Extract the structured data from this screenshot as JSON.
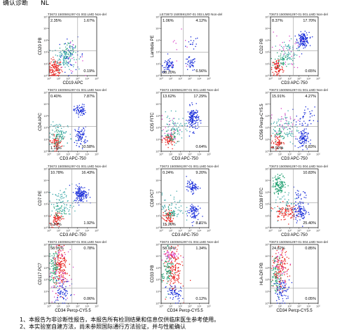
{
  "header": {
    "title": "确认诊断",
    "mark": "NL"
  },
  "notes": [
    "1、本报告为非诊断性报告，本报告所有检测结果和信息仅供临床医生参考使用。",
    "2、本实验室自建方法，尚未参照国际通行方法验证，并与性能确认"
  ],
  "colors": {
    "red": "#e8201c",
    "blue": "#1428d8",
    "green": "#20a070",
    "teal": "#3aa7a8",
    "magenta": "#d840c8",
    "gate": "#9a9a9a"
  },
  "chart_data": [
    {
      "type": "scatter",
      "title": "T3673 1500591297-01 002.LMD    Non-del",
      "xlabel": "CD19 APC",
      "ylabel": "CD20 PB",
      "ticks": [
        "10⁰",
        "10¹",
        "10²",
        "10³",
        "10⁴",
        "10⁵"
      ],
      "xlim": [
        0,
        5
      ],
      "ylim": [
        0,
        5
      ],
      "gate": [
        3.0,
        2.1
      ],
      "quadrants": {
        "ul": "2.35%",
        "ur": "1.67%",
        "lr": "0.19%"
      },
      "populations": [
        {
          "color": "red",
          "x": 0.6,
          "y": 0.6,
          "sx": 0.35,
          "sy": 0.4,
          "n": 120
        },
        {
          "color": "teal",
          "x": 1.6,
          "y": 1.6,
          "sx": 0.55,
          "sy": 0.5,
          "n": 120
        },
        {
          "color": "green",
          "x": 2.1,
          "y": 2.3,
          "sx": 0.35,
          "sy": 0.3,
          "n": 30
        },
        {
          "color": "blue",
          "x": 2.3,
          "y": 1.8,
          "sx": 0.7,
          "sy": 0.7,
          "n": 35
        },
        {
          "color": "magenta",
          "x": 2.0,
          "y": 1.5,
          "sx": 0.8,
          "sy": 0.6,
          "n": 12
        }
      ]
    },
    {
      "type": "scatter",
      "title": "LE73673 1500591297-01 002.LMD    Non-del",
      "xlabel": "",
      "ylabel": "Lambda PE",
      "ticks": [
        "10⁰",
        "10¹",
        "10²",
        "10³",
        "10⁴",
        "10⁵"
      ],
      "xlim": [
        0,
        5
      ],
      "ylim": [
        0,
        5
      ],
      "gate": [
        2.3,
        2.0
      ],
      "quadrants": {
        "ul": "1.06%",
        "ur": "4.12%",
        "ll": "88.20%",
        "lr": "6.56%"
      },
      "populations": [
        {
          "color": "blue",
          "x": 0.8,
          "y": 0.9,
          "sx": 0.35,
          "sy": 0.3,
          "n": 60
        },
        {
          "color": "blue",
          "x": 3.0,
          "y": 1.0,
          "sx": 0.3,
          "sy": 0.3,
          "n": 40
        },
        {
          "color": "blue",
          "x": 3.3,
          "y": 2.8,
          "sx": 0.3,
          "sy": 0.3,
          "n": 15
        },
        {
          "color": "magenta",
          "x": 1.8,
          "y": 1.8,
          "sx": 0.9,
          "sy": 0.9,
          "n": 10
        }
      ]
    },
    {
      "type": "scatter",
      "title": "T3673 1500591297-01 001.LMD    Non-del",
      "xlabel": "CD3 APC-750",
      "ylabel": "CD2 PB",
      "ticks": [
        "10⁰",
        "10¹",
        "10²",
        "10³",
        "10⁴",
        "10⁵"
      ],
      "xlim": [
        0,
        5
      ],
      "ylim": [
        0,
        5
      ],
      "gate": [
        2.4,
        2.1
      ],
      "quadrants": {
        "ul": "8.37%",
        "ur": "17.70%",
        "lr": "0.65%"
      },
      "populations": [
        {
          "color": "blue",
          "x": 3.4,
          "y": 3.1,
          "sx": 0.3,
          "sy": 0.3,
          "n": 140
        },
        {
          "color": "red",
          "x": 0.7,
          "y": 0.7,
          "sx": 0.3,
          "sy": 0.4,
          "n": 80
        },
        {
          "color": "green",
          "x": 1.2,
          "y": 1.4,
          "sx": 0.4,
          "sy": 0.4,
          "n": 50
        },
        {
          "color": "teal",
          "x": 1.8,
          "y": 2.0,
          "sx": 0.5,
          "sy": 0.5,
          "n": 60
        },
        {
          "color": "magenta",
          "x": 1.6,
          "y": 2.2,
          "sx": 0.8,
          "sy": 0.8,
          "n": 30
        }
      ]
    },
    {
      "type": "scatter",
      "title": "T3673 1500591297-01 001.LMD    Non-del",
      "xlabel": "CD3 APC-750",
      "ylabel": "CD4 APC",
      "ticks": [
        "10⁰",
        "10¹",
        "10²",
        "10³",
        "10⁴",
        "10⁵"
      ],
      "xlim": [
        0,
        5
      ],
      "ylim": [
        0,
        5
      ],
      "gate": [
        2.4,
        2.1
      ],
      "quadrants": {
        "ul": "0.40%",
        "ur": "7.87%",
        "ll": "1.15%",
        "lr": "10.58%"
      },
      "populations": [
        {
          "color": "blue",
          "x": 3.2,
          "y": 3.5,
          "sx": 0.3,
          "sy": 0.25,
          "n": 70
        },
        {
          "color": "blue",
          "x": 3.3,
          "y": 1.3,
          "sx": 0.3,
          "sy": 0.4,
          "n": 80
        },
        {
          "color": "red",
          "x": 0.7,
          "y": 0.8,
          "sx": 0.3,
          "sy": 0.3,
          "n": 70
        },
        {
          "color": "teal",
          "x": 1.2,
          "y": 1.5,
          "sx": 0.6,
          "sy": 0.5,
          "n": 70
        },
        {
          "color": "green",
          "x": 0.9,
          "y": 1.2,
          "sx": 0.3,
          "sy": 0.3,
          "n": 30
        }
      ]
    },
    {
      "type": "scatter",
      "title": "T3673 1500591297-01 001.LMD    Non-del",
      "xlabel": "CD3 APC-750",
      "ylabel": "CD5 FITC",
      "ticks": [
        "10⁰",
        "10¹",
        "10²",
        "10³",
        "10⁴",
        "10⁵"
      ],
      "xlim": [
        0,
        5
      ],
      "ylim": [
        0,
        5
      ],
      "gate": [
        2.4,
        2.1
      ],
      "quadrants": {
        "ul": "13.62%",
        "ur": "17.29%",
        "lr": "0.64%"
      },
      "populations": [
        {
          "color": "blue",
          "x": 3.3,
          "y": 2.8,
          "sx": 0.3,
          "sy": 0.5,
          "n": 140
        },
        {
          "color": "red",
          "x": 0.8,
          "y": 1.0,
          "sx": 0.3,
          "sy": 0.3,
          "n": 70
        },
        {
          "color": "teal",
          "x": 1.3,
          "y": 1.9,
          "sx": 0.6,
          "sy": 0.6,
          "n": 70
        },
        {
          "color": "magenta",
          "x": 1.0,
          "y": 2.0,
          "sx": 0.6,
          "sy": 0.6,
          "n": 25
        },
        {
          "color": "green",
          "x": 1.1,
          "y": 1.4,
          "sx": 0.3,
          "sy": 0.3,
          "n": 25
        }
      ]
    },
    {
      "type": "scatter",
      "title": "T3673 1500591297-01 001.LMD    Non-del",
      "xlabel": "CD3 APC-750",
      "ylabel": "CD56 Percp-CY5.5",
      "ticks": [
        "10⁰",
        "10¹",
        "10²",
        "10³",
        "10⁴",
        "10⁵"
      ],
      "xlim": [
        0,
        5
      ],
      "ylim": [
        0,
        5
      ],
      "gate": [
        2.4,
        2.1
      ],
      "quadrants": {
        "ul": "15.91%",
        "ur": "4.27%",
        "ll": "0.99%",
        "lr": "6.83%"
      },
      "populations": [
        {
          "color": "blue",
          "x": 3.3,
          "y": 1.1,
          "sx": 0.3,
          "sy": 0.4,
          "n": 90
        },
        {
          "color": "blue",
          "x": 3.6,
          "y": 2.8,
          "sx": 0.5,
          "sy": 0.5,
          "n": 40
        },
        {
          "color": "red",
          "x": 0.7,
          "y": 0.8,
          "sx": 0.3,
          "sy": 0.3,
          "n": 60
        },
        {
          "color": "teal",
          "x": 1.5,
          "y": 2.0,
          "sx": 0.7,
          "sy": 0.7,
          "n": 80
        },
        {
          "color": "magenta",
          "x": 1.5,
          "y": 2.5,
          "sx": 0.8,
          "sy": 0.7,
          "n": 30
        },
        {
          "color": "green",
          "x": 1.0,
          "y": 1.5,
          "sx": 0.3,
          "sy": 0.3,
          "n": 25
        }
      ]
    },
    {
      "type": "scatter",
      "title": "T3673 1500591297-01 001.LMD    Non-del",
      "xlabel": "CD3 APC-750",
      "ylabel": "CD7 PE",
      "ticks": [
        "10⁰",
        "10¹",
        "10²",
        "10³",
        "10⁴",
        "10⁵"
      ],
      "xlim": [
        0,
        5
      ],
      "ylim": [
        0,
        5
      ],
      "gate": [
        2.4,
        2.1
      ],
      "quadrants": {
        "ul": "10.78%",
        "ur": "16.43%",
        "ll": "5.87%",
        "lr": "1.92%"
      },
      "populations": [
        {
          "color": "blue",
          "x": 3.3,
          "y": 2.9,
          "sx": 0.35,
          "sy": 0.35,
          "n": 140
        },
        {
          "color": "red",
          "x": 0.7,
          "y": 0.8,
          "sx": 0.3,
          "sy": 0.3,
          "n": 70
        },
        {
          "color": "teal",
          "x": 1.4,
          "y": 2.1,
          "sx": 0.6,
          "sy": 0.6,
          "n": 80
        },
        {
          "color": "green",
          "x": 1.0,
          "y": 1.4,
          "sx": 0.3,
          "sy": 0.3,
          "n": 25
        }
      ]
    },
    {
      "type": "scatter",
      "title": "T3673 1500591297-01 001.LMD    Non-del",
      "xlabel": "CD3 APC-750",
      "ylabel": "CD8 PC7",
      "ticks": [
        "10⁰",
        "10¹",
        "10²",
        "10³",
        "10⁴",
        "10⁵"
      ],
      "xlim": [
        0,
        5
      ],
      "ylim": [
        0,
        5
      ],
      "gate": [
        2.4,
        2.1
      ],
      "quadrants": {
        "ul": "0.24%",
        "ur": "9.20%",
        "ll": "15.26%",
        "lr": "8.81%"
      },
      "populations": [
        {
          "color": "blue",
          "x": 3.2,
          "y": 3.5,
          "sx": 0.3,
          "sy": 0.25,
          "n": 70
        },
        {
          "color": "blue",
          "x": 3.3,
          "y": 1.4,
          "sx": 0.3,
          "sy": 0.4,
          "n": 80
        },
        {
          "color": "red",
          "x": 0.7,
          "y": 0.9,
          "sx": 0.3,
          "sy": 0.3,
          "n": 70
        },
        {
          "color": "teal",
          "x": 1.2,
          "y": 1.7,
          "sx": 0.6,
          "sy": 0.6,
          "n": 60
        },
        {
          "color": "green",
          "x": 0.9,
          "y": 1.3,
          "sx": 0.3,
          "sy": 0.3,
          "n": 25
        }
      ]
    },
    {
      "type": "scatter",
      "title": "T3673 1500591297-01 004.LMD    Non-del",
      "xlabel": "CD3 APC-750",
      "ylabel": "CD38 FITC",
      "ticks": [
        "10⁰",
        "10¹",
        "10²",
        "10³",
        "10⁴",
        "10⁵"
      ],
      "xlim": [
        0,
        5
      ],
      "ylim": [
        0,
        5
      ],
      "gate": [
        2.4,
        2.1
      ],
      "quadrants": {
        "ur": "10.83%",
        "lr": "25.40%"
      },
      "populations": [
        {
          "color": "green",
          "x": 0.9,
          "y": 3.7,
          "sx": 0.35,
          "sy": 0.4,
          "n": 120
        },
        {
          "color": "red",
          "x": 1.5,
          "y": 1.4,
          "sx": 0.55,
          "sy": 0.35,
          "n": 100
        },
        {
          "color": "blue",
          "x": 3.1,
          "y": 1.4,
          "sx": 0.35,
          "sy": 0.4,
          "n": 90
        },
        {
          "color": "blue",
          "x": 3.1,
          "y": 2.6,
          "sx": 0.35,
          "sy": 0.4,
          "n": 25
        },
        {
          "color": "teal",
          "x": 1.5,
          "y": 2.0,
          "sx": 0.6,
          "sy": 0.6,
          "n": 40
        }
      ]
    },
    {
      "type": "scatter",
      "title": "T3673 1500591297-01 004.LMD    Non-del",
      "xlabel": "CD34 Percp-CY5.5",
      "ylabel": "CD117 PC7",
      "ticks": [
        "10⁰",
        "10¹",
        "10²",
        "10³",
        "10⁴",
        "10⁵"
      ],
      "xlim": [
        0,
        5
      ],
      "ylim": [
        0,
        5
      ],
      "gate": [
        2.4,
        1.3
      ],
      "quadrants": {
        "ul": "58.01%",
        "ur": "0.78%",
        "lr": "0.06%"
      },
      "populations": [
        {
          "color": "red",
          "x": 1.2,
          "y": 3.0,
          "sx": 0.4,
          "sy": 0.9,
          "n": 160
        },
        {
          "color": "green",
          "x": 0.5,
          "y": 3.2,
          "sx": 0.3,
          "sy": 0.8,
          "n": 90
        },
        {
          "color": "magenta",
          "x": 1.0,
          "y": 2.5,
          "sx": 0.5,
          "sy": 1.0,
          "n": 60
        },
        {
          "color": "blue",
          "x": 1.4,
          "y": 1.0,
          "sx": 0.4,
          "sy": 0.5,
          "n": 60
        }
      ]
    },
    {
      "type": "scatter",
      "title": "T3673 1500591297-01 004.LMD    Non-del",
      "xlabel": "CD34 Percp-CY5.5",
      "ylabel": "CD33 PB",
      "ticks": [
        "10⁰",
        "10¹",
        "10²",
        "10³",
        "10⁴",
        "10⁵"
      ],
      "xlim": [
        0,
        5
      ],
      "ylim": [
        0,
        5
      ],
      "gate": [
        2.4,
        1.3
      ],
      "quadrants": {
        "ul": "58.94%",
        "ur": "1.34%",
        "lr": "0.12%"
      },
      "populations": [
        {
          "color": "magenta",
          "x": 0.9,
          "y": 4.1,
          "sx": 0.5,
          "sy": 0.2,
          "n": 50
        },
        {
          "color": "red",
          "x": 1.3,
          "y": 2.8,
          "sx": 0.4,
          "sy": 0.9,
          "n": 150
        },
        {
          "color": "green",
          "x": 0.6,
          "y": 2.8,
          "sx": 0.3,
          "sy": 0.8,
          "n": 80
        },
        {
          "color": "blue",
          "x": 1.3,
          "y": 0.9,
          "sx": 0.4,
          "sy": 0.4,
          "n": 60
        }
      ]
    },
    {
      "type": "scatter",
      "title": "T3673 1500591297-01 004.LMD    Non-del",
      "xlabel": "CD34 Percp-CY5.5",
      "ylabel": "HLA-DR PB",
      "ticks": [
        "10⁰",
        "10¹",
        "10²",
        "10³",
        "10⁴",
        "10⁵"
      ],
      "xlim": [
        0,
        5
      ],
      "ylim": [
        0,
        5
      ],
      "gate": [
        2.4,
        1.3
      ],
      "quadrants": {
        "ul": "24.82%",
        "ur": "0.85%",
        "lr": "0.05%"
      },
      "populations": [
        {
          "color": "red",
          "x": 1.0,
          "y": 2.9,
          "sx": 0.4,
          "sy": 0.8,
          "n": 140
        },
        {
          "color": "green",
          "x": 0.6,
          "y": 2.4,
          "sx": 0.3,
          "sy": 0.8,
          "n": 80
        },
        {
          "color": "blue",
          "x": 1.2,
          "y": 1.1,
          "sx": 0.4,
          "sy": 0.5,
          "n": 70
        },
        {
          "color": "magenta",
          "x": 1.1,
          "y": 3.3,
          "sx": 0.5,
          "sy": 0.6,
          "n": 30
        }
      ]
    }
  ]
}
